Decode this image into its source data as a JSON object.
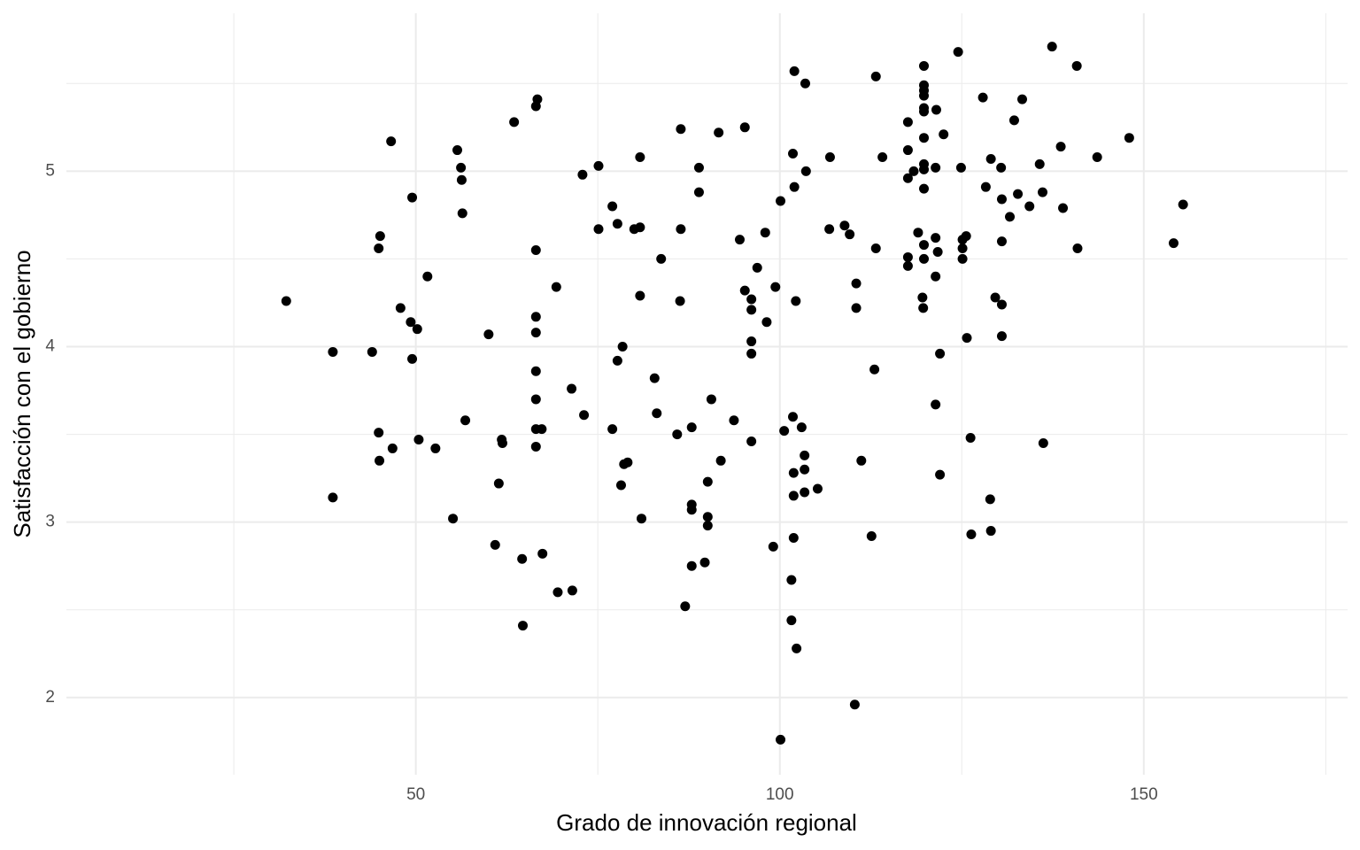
{
  "chart_data": {
    "type": "scatter",
    "x_label": "Grado de innovación regional",
    "y_label": "Satisfacción con el gobierno",
    "color": "#000000",
    "grid": true,
    "xlim": [
      2,
      178
    ],
    "xticks": [
      50,
      100,
      150
    ],
    "xminor": [
      25,
      75,
      125,
      175
    ],
    "ylim": [
      1.56,
      5.9
    ],
    "yticks": [
      2,
      3,
      4,
      5
    ],
    "yminor": [
      2.5,
      3.5,
      4.5,
      5.5
    ],
    "x": [
      32.2,
      38.6,
      38.6,
      44.0,
      45.1,
      44.9,
      44.9,
      45.0,
      46.6,
      46.8,
      47.9,
      49.3,
      49.5,
      49.5,
      50.2,
      50.4,
      51.6,
      52.7,
      55.1,
      55.7,
      56.2,
      56.3,
      56.4,
      56.8,
      60.0,
      60.9,
      61.4,
      61.8,
      61.9,
      63.5,
      64.6,
      64.7,
      66.7,
      66.5,
      66.5,
      66.5,
      66.5,
      66.5,
      66.5,
      66.5,
      67.3,
      66.5,
      67.4,
      69.3,
      69.5,
      71.5,
      71.4,
      72.9,
      73.1,
      75.1,
      75.1,
      77.0,
      77.0,
      77.7,
      77.7,
      78.4,
      78.2,
      78.6,
      79.1,
      80.0,
      80.8,
      80.8,
      80.8,
      81.0,
      82.8,
      83.1,
      83.7,
      85.9,
      86.4,
      86.4,
      86.3,
      87.0,
      87.9,
      87.9,
      87.9,
      87.9,
      88.9,
      88.9,
      89.7,
      90.1,
      90.1,
      90.1,
      90.6,
      91.6,
      91.9,
      93.7,
      94.5,
      95.2,
      95.2,
      96.1,
      96.1,
      96.1,
      96.1,
      96.1,
      96.9,
      98.0,
      98.2,
      99.1,
      99.4,
      100.1,
      100.1,
      100.6,
      101.6,
      101.6,
      101.8,
      101.9,
      101.9,
      101.9,
      102.0,
      101.8,
      102.0,
      102.2,
      102.3,
      103.0,
      103.4,
      103.4,
      103.4,
      103.5,
      103.6,
      105.2,
      106.8,
      106.9,
      108.9,
      109.6,
      110.5,
      110.5,
      110.3,
      111.2,
      112.6,
      113.0,
      113.2,
      113.2,
      114.1,
      117.6,
      117.6,
      117.6,
      117.6,
      117.6,
      118.4,
      119.0,
      119.8,
      119.8,
      119.8,
      119.8,
      119.8,
      119.8,
      119.8,
      119.8,
      119.8,
      119.8,
      119.8,
      119.8,
      119.6,
      119.7,
      121.4,
      121.4,
      121.7,
      121.5,
      121.4,
      121.4,
      122.0,
      122.0,
      122.5,
      124.5,
      124.9,
      125.1,
      125.1,
      125.1,
      125.6,
      125.7,
      126.2,
      126.3,
      127.9,
      128.3,
      129.0,
      128.9,
      129.0,
      129.6,
      130.4,
      130.5,
      130.5,
      130.5,
      130.5,
      131.6,
      132.2,
      132.7,
      133.3,
      134.3,
      135.7,
      136.1,
      136.2,
      137.4,
      138.6,
      138.9,
      140.8,
      140.9,
      143.6,
      148.0,
      154.1,
      155.4
    ],
    "values": [
      4.26,
      3.97,
      3.14,
      3.97,
      4.63,
      4.56,
      3.51,
      3.35,
      5.17,
      3.42,
      4.22,
      4.14,
      4.85,
      3.93,
      4.1,
      3.47,
      4.4,
      3.42,
      3.02,
      5.12,
      5.02,
      4.95,
      4.76,
      3.58,
      4.07,
      2.87,
      3.22,
      3.47,
      3.45,
      5.28,
      2.79,
      2.41,
      5.41,
      5.37,
      4.55,
      4.17,
      4.08,
      3.86,
      3.7,
      3.53,
      3.53,
      3.43,
      2.82,
      4.34,
      2.6,
      2.61,
      3.76,
      4.98,
      3.61,
      5.03,
      4.67,
      3.53,
      4.8,
      3.92,
      4.7,
      4.0,
      3.21,
      3.33,
      3.34,
      4.67,
      4.68,
      5.08,
      4.29,
      3.02,
      3.82,
      3.62,
      4.5,
      3.5,
      5.24,
      4.67,
      4.26,
      2.52,
      3.54,
      3.1,
      3.07,
      2.75,
      5.02,
      4.88,
      2.77,
      3.23,
      3.03,
      2.98,
      3.7,
      5.22,
      3.35,
      3.58,
      4.61,
      5.25,
      4.32,
      4.27,
      4.21,
      4.03,
      3.96,
      3.46,
      4.45,
      4.65,
      4.14,
      2.86,
      4.34,
      4.83,
      1.76,
      3.52,
      2.67,
      2.44,
      3.6,
      3.28,
      3.15,
      2.91,
      5.57,
      5.1,
      4.91,
      4.26,
      2.28,
      3.54,
      3.38,
      3.3,
      3.17,
      5.5,
      5.0,
      3.19,
      4.67,
      5.08,
      4.69,
      4.64,
      4.36,
      4.22,
      1.96,
      3.35,
      2.92,
      3.87,
      4.56,
      5.54,
      5.08,
      5.28,
      5.12,
      4.96,
      4.51,
      4.46,
      5.0,
      4.65,
      5.6,
      5.49,
      5.46,
      5.43,
      5.36,
      5.34,
      5.19,
      5.04,
      5.01,
      4.9,
      4.58,
      4.5,
      4.28,
      4.22,
      5.02,
      4.62,
      4.54,
      5.35,
      4.4,
      3.67,
      3.96,
      3.27,
      5.21,
      5.68,
      5.02,
      4.61,
      4.56,
      4.5,
      4.63,
      4.05,
      3.48,
      2.93,
      5.42,
      4.91,
      5.07,
      3.13,
      2.95,
      4.28,
      5.02,
      4.84,
      4.6,
      4.24,
      4.06,
      4.74,
      5.29,
      4.87,
      5.41,
      4.8,
      5.04,
      4.88,
      3.45,
      5.71,
      5.14,
      4.79,
      5.6,
      4.56,
      5.08,
      5.19,
      4.59,
      4.81
    ]
  }
}
